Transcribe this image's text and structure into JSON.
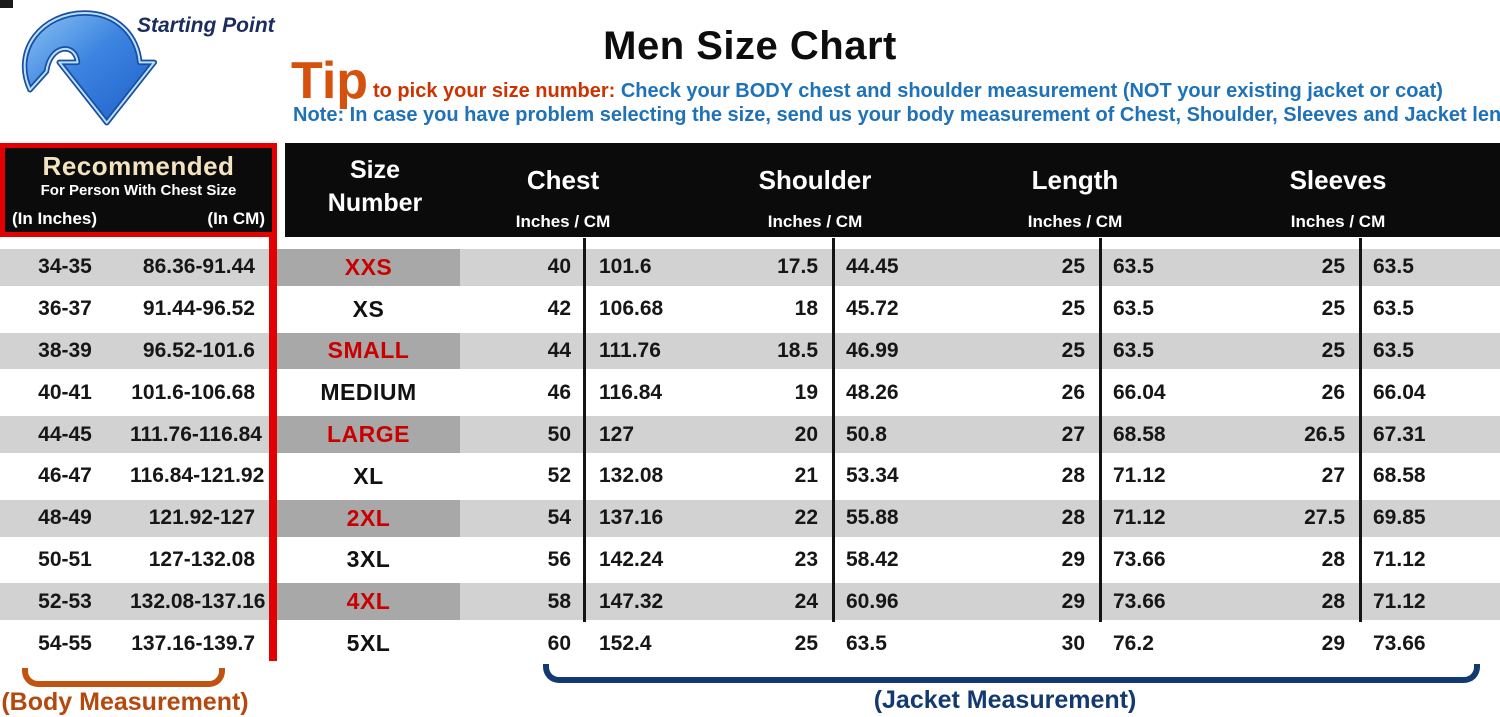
{
  "header": {
    "starting_point": "Starting Point",
    "title": "Men Size Chart",
    "tip_word": "Tip",
    "tip_intro": "to pick your size number:",
    "tip_check": "Check your BODY chest and shoulder measurement (NOT your existing jacket or coat)",
    "note": "Note: In case you have problem selecting the size, send us your body measurement of Chest, Shoulder, Sleeves and Jacket length"
  },
  "table": {
    "recommended": {
      "title": "Recommended",
      "subtitle": "For Person With Chest Size",
      "in_inches": "(In Inches)",
      "in_cm": "(In CM)"
    },
    "size_number_label": "Size Number",
    "groups": [
      {
        "label": "Chest",
        "sub": "Inches  /  CM"
      },
      {
        "label": "Shoulder",
        "sub": "Inches  /  CM"
      },
      {
        "label": "Length",
        "sub": "Inches  /  CM"
      },
      {
        "label": "Sleeves",
        "sub": "Inches  /  CM"
      }
    ],
    "accent_rows": [
      0,
      2,
      4,
      6,
      8
    ]
  },
  "footer": {
    "body_measurement": "(Body Measurement)",
    "jacket_measurement": "(Jacket Measurement)"
  },
  "colors": {
    "accent_red": "#e30000",
    "table_red_text": "#c90000",
    "row_gray": "#d2d2d2",
    "size_cell_gray": "#a8a8a8",
    "header_black": "#0b0b0b",
    "cream_heading": "#f3e3c0",
    "tip_orange": "#d4510e",
    "tip_intro_red": "#cc3300",
    "info_blue": "#1f72b8",
    "navy": "#123a70",
    "body_orange": "#b5480d",
    "arrow_blue": "#2f7ddb"
  },
  "chart_data": {
    "type": "table",
    "title": "Men Size Chart",
    "columns": [
      "Recommended (In Inches)",
      "Recommended (In CM)",
      "Size Number",
      "Chest (Inches)",
      "Chest (CM)",
      "Shoulder (Inches)",
      "Shoulder (CM)",
      "Length (Inches)",
      "Length (CM)",
      "Sleeves (Inches)",
      "Sleeves (CM)"
    ],
    "rows": [
      [
        "34-35",
        "86.36-91.44",
        "XXS",
        "40",
        "101.6",
        "17.5",
        "44.45",
        "25",
        "63.5",
        "25",
        "63.5"
      ],
      [
        "36-37",
        "91.44-96.52",
        "XS",
        "42",
        "106.68",
        "18",
        "45.72",
        "25",
        "63.5",
        "25",
        "63.5"
      ],
      [
        "38-39",
        "96.52-101.6",
        "SMALL",
        "44",
        "111.76",
        "18.5",
        "46.99",
        "25",
        "63.5",
        "25",
        "63.5"
      ],
      [
        "40-41",
        "101.6-106.68",
        "MEDIUM",
        "46",
        "116.84",
        "19",
        "48.26",
        "26",
        "66.04",
        "26",
        "66.04"
      ],
      [
        "44-45",
        "111.76-116.84",
        "LARGE",
        "50",
        "127",
        "20",
        "50.8",
        "27",
        "68.58",
        "26.5",
        "67.31"
      ],
      [
        "46-47",
        "116.84-121.92",
        "XL",
        "52",
        "132.08",
        "21",
        "53.34",
        "28",
        "71.12",
        "27",
        "68.58"
      ],
      [
        "48-49",
        "121.92-127",
        "2XL",
        "54",
        "137.16",
        "22",
        "55.88",
        "28",
        "71.12",
        "27.5",
        "69.85"
      ],
      [
        "50-51",
        "127-132.08",
        "3XL",
        "56",
        "142.24",
        "23",
        "58.42",
        "29",
        "73.66",
        "28",
        "71.12"
      ],
      [
        "52-53",
        "132.08-137.16",
        "4XL",
        "58",
        "147.32",
        "24",
        "60.96",
        "29",
        "73.66",
        "28",
        "71.12"
      ],
      [
        "54-55",
        "137.16-139.7",
        "5XL",
        "60",
        "152.4",
        "25",
        "63.5",
        "30",
        "76.2",
        "29",
        "73.66"
      ]
    ]
  }
}
